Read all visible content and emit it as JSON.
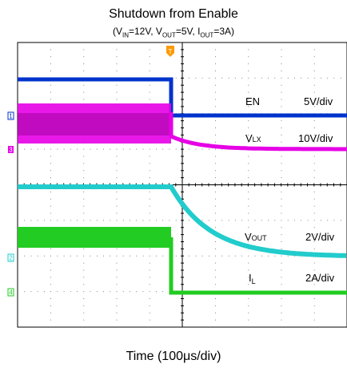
{
  "chart_data": {
    "type": "line",
    "title": "Shutdown from Enable",
    "subtitle": {
      "prefix": "(V",
      "vin_sub": "IN",
      "vin_rest": "=12V, V",
      "vout_sub": "OUT",
      "vout_rest": "=5V, I",
      "iout_sub": "OUT",
      "suffix": "=3A)"
    },
    "xlabel": "Time (100μs/div)",
    "grid": true,
    "trigger_marker": "T",
    "time_divisions": 10,
    "voltage_divisions": 8,
    "series": [
      {
        "name": "EN",
        "channel": "1",
        "scale": "5V/div",
        "color": "#0033cc"
      },
      {
        "name": "V",
        "name_sub": "LX",
        "channel": "3",
        "scale": "10V/div",
        "color": "#e600e6"
      },
      {
        "name": "V",
        "name_sub": "OUT",
        "channel": "2",
        "scale": "2V/div",
        "color": "#22cccc"
      },
      {
        "name": "I",
        "name_sub": "L",
        "channel": "4",
        "scale": "2A/div",
        "color": "#22cc22"
      }
    ]
  }
}
